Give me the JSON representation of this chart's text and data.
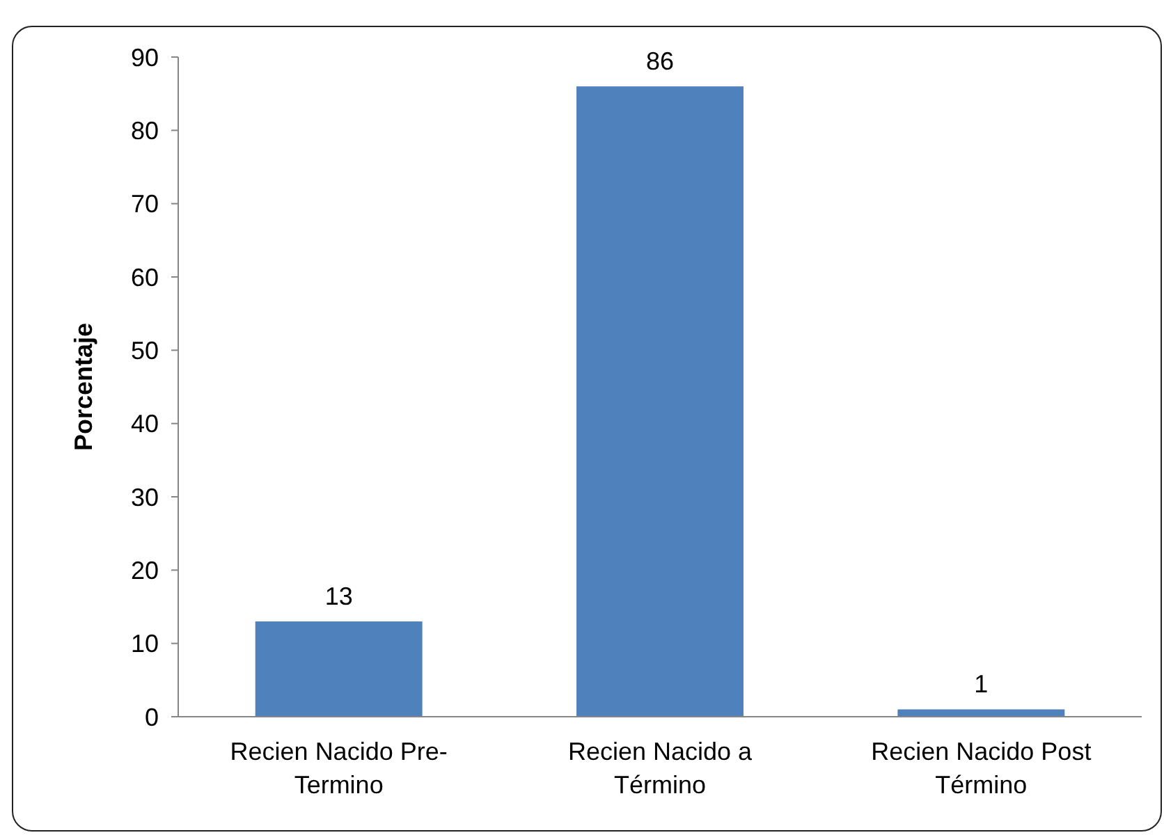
{
  "chart_data": {
    "type": "bar",
    "ylabel": "Porcentaje",
    "categories": [
      "Recien Nacido Pre-Termino",
      "Recien Nacido a Término",
      "Recien Nacido Post Término"
    ],
    "values": [
      13,
      86,
      1
    ],
    "color": "#4f81bd",
    "ylim": [
      0,
      90
    ],
    "yticks": [
      0,
      10,
      20,
      30,
      40,
      50,
      60,
      70,
      80,
      90
    ],
    "data_labels": true
  }
}
